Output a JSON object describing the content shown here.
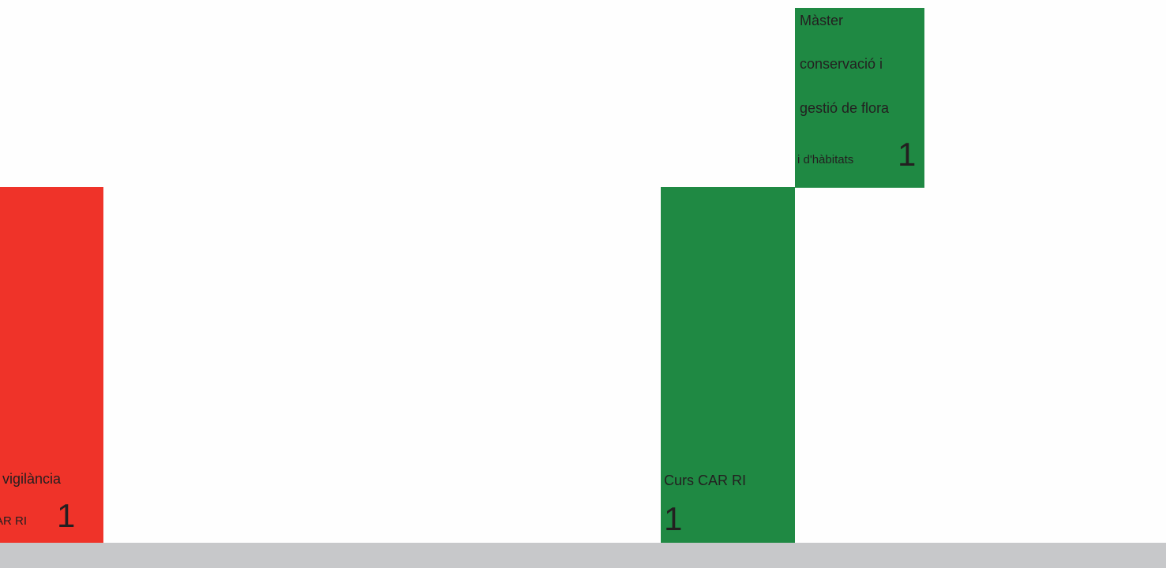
{
  "blocks": {
    "red": {
      "line1": "vigilància",
      "line2": "AR RI",
      "count": "1",
      "color": "#ef3329"
    },
    "green_tall": {
      "line1": "Curs CAR RI",
      "count": "1",
      "color": "#1f8943"
    },
    "green_top": {
      "line1": "Màster",
      "line2": "conservació  i",
      "line3": "gestió de flora",
      "line4": "i d'hàbitats",
      "count": "1",
      "color": "#1f8943"
    }
  },
  "footer": {
    "color": "#c7c8ca"
  }
}
